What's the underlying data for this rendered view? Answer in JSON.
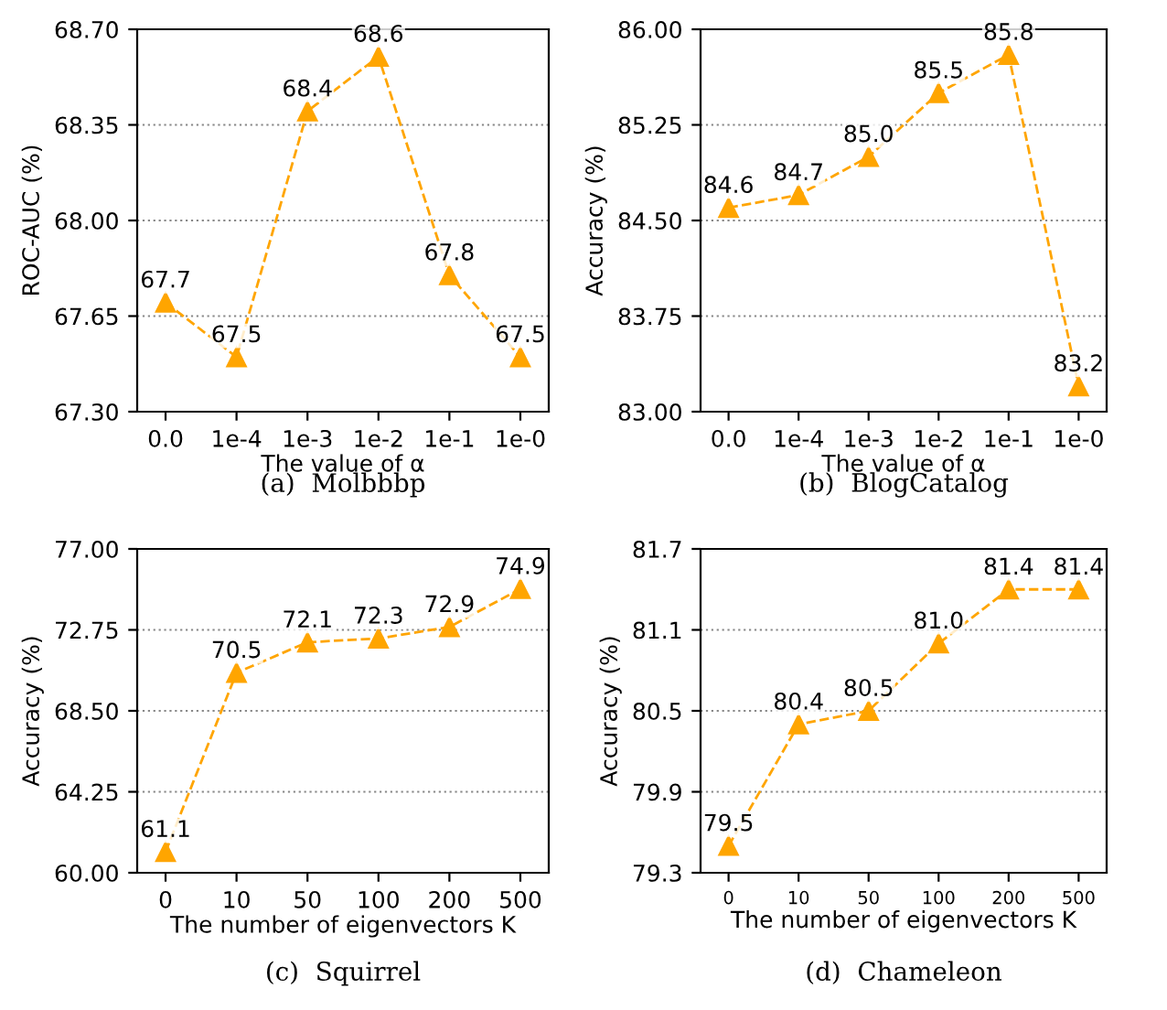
{
  "chart_data": [
    {
      "type": "line",
      "title": "(a)  Molbbbp",
      "xlabel": "The value of α",
      "ylabel": "ROC-AUC (%)",
      "categories": [
        "0.0",
        "1e-4",
        "1e-3",
        "1e-2",
        "1e-1",
        "1e-0"
      ],
      "series": [
        {
          "color": "#ffa500",
          "values": [
            67.7,
            67.5,
            68.4,
            68.6,
            67.8,
            67.5
          ]
        }
      ],
      "ylim": [
        67.3,
        68.7
      ],
      "yticks": [
        {
          "value": 67.3,
          "label": "67.30"
        },
        {
          "value": 67.65,
          "label": "67.65"
        },
        {
          "value": 68.0,
          "label": "68.00"
        },
        {
          "value": 68.35,
          "label": "68.35"
        },
        {
          "value": 68.7,
          "label": "68.70"
        }
      ],
      "grid": "y",
      "marker": "triangle",
      "line_style": "dashed",
      "data_labels": true
    },
    {
      "type": "line",
      "title": "(b)  BlogCatalog",
      "xlabel": "The value of α",
      "ylabel": "Accuracy (%)",
      "categories": [
        "0.0",
        "1e-4",
        "1e-3",
        "1e-2",
        "1e-1",
        "1e-0"
      ],
      "series": [
        {
          "color": "#ffa500",
          "values": [
            84.6,
            84.7,
            85.0,
            85.5,
            85.8,
            83.2
          ],
          "value_labels": [
            "84.6",
            "84.7",
            "85.0",
            "85.5",
            "85.8",
            "83.2"
          ]
        }
      ],
      "ylim": [
        83.0,
        86.0
      ],
      "yticks": [
        {
          "value": 83.0,
          "label": "83.00"
        },
        {
          "value": 83.75,
          "label": "83.75"
        },
        {
          "value": 84.5,
          "label": "84.50"
        },
        {
          "value": 85.25,
          "label": "85.25"
        },
        {
          "value": 86.0,
          "label": "86.00"
        }
      ],
      "grid": "y",
      "marker": "triangle",
      "line_style": "dashed"
    },
    {
      "type": "line",
      "title": "(c)  Squirrel",
      "xlabel": "The number of eigenvectors K",
      "ylabel": "Accuracy (%)",
      "categories": [
        "0",
        "10",
        "50",
        "100",
        "200",
        "500"
      ],
      "series": [
        {
          "color": "#ffa500",
          "values": [
            61.1,
            70.5,
            72.1,
            72.3,
            72.9,
            74.9
          ]
        }
      ],
      "ylim": [
        60.0,
        77.0
      ],
      "yticks": [
        {
          "value": 60.0,
          "label": "60.00"
        },
        {
          "value": 64.25,
          "label": "64.25"
        },
        {
          "value": 68.5,
          "label": "68.50"
        },
        {
          "value": 72.75,
          "label": "72.75"
        },
        {
          "value": 77.0,
          "label": "77.00"
        }
      ],
      "grid": "y",
      "marker": "triangle",
      "line_style": "dashed",
      "data_labels": true
    },
    {
      "type": "line",
      "title": "(d)  Chameleon",
      "xlabel": "The number of eigenvectors K",
      "ylabel": "Accuracy (%)",
      "categories": [
        "0",
        "10",
        "50",
        "100",
        "200",
        "500"
      ],
      "series": [
        {
          "color": "#ffa500",
          "values": [
            79.5,
            80.4,
            80.5,
            81.0,
            81.4,
            81.4
          ],
          "value_labels": [
            "79.5",
            "80.4",
            "80.5",
            "81.0",
            "81.4",
            "81.4"
          ]
        }
      ],
      "ylim": [
        79.3,
        81.7
      ],
      "yticks": [
        79.3,
        79.9,
        80.5,
        81.1,
        81.7
      ],
      "grid": "y",
      "marker": "triangle",
      "line_style": "dashed"
    }
  ]
}
